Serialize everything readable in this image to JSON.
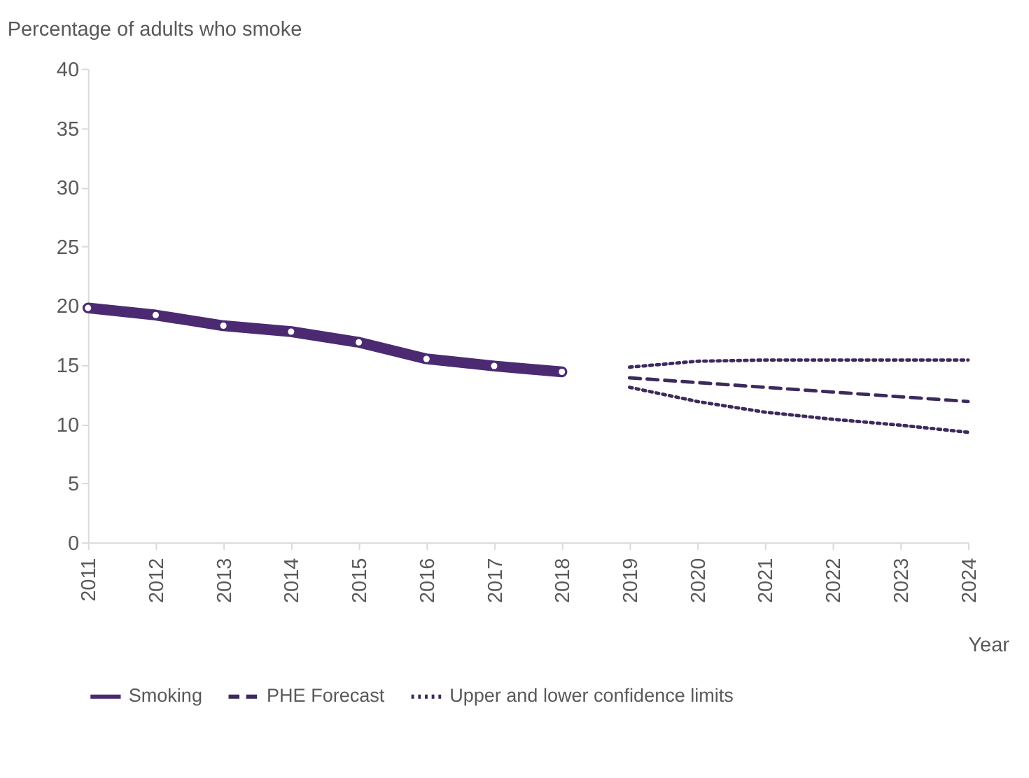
{
  "chart_data": {
    "type": "line",
    "ylabel": "Percentage of adults who smoke",
    "xlabel": "Year",
    "xlim": [
      2011,
      2024
    ],
    "xticks": [
      2011,
      2012,
      2013,
      2014,
      2015,
      2016,
      2017,
      2018,
      2019,
      2020,
      2021,
      2022,
      2023,
      2024
    ],
    "ylim": [
      0,
      40
    ],
    "yticks": [
      0,
      5,
      10,
      15,
      20,
      25,
      30,
      35,
      40
    ],
    "grid": false,
    "legend": "bottom",
    "series": [
      {
        "name": "Smoking",
        "color": "#4b2a72",
        "marker": "circle",
        "line_style": "solid",
        "x": [
          2011,
          2012,
          2013,
          2014,
          2015,
          2016,
          2017,
          2018
        ],
        "values": [
          19.8,
          19.2,
          18.3,
          17.8,
          16.9,
          15.5,
          14.9,
          14.4
        ]
      },
      {
        "name": "PHE Forecast",
        "color": "#3d2a5c",
        "marker": "none",
        "line_style": "dashed",
        "x": [
          2019,
          2020,
          2021,
          2022,
          2023,
          2024
        ],
        "values": [
          13.9,
          13.5,
          13.1,
          12.7,
          12.3,
          11.9
        ]
      },
      {
        "name": "Upper and lower confidence limits",
        "color": "#3d2a5c",
        "marker": "none",
        "line_style": "dotted",
        "x": [
          2019,
          2020,
          2021,
          2022,
          2023,
          2024
        ],
        "values": [
          14.8,
          15.3,
          15.4,
          15.4,
          15.4,
          15.4
        ]
      },
      {
        "color": "#3d2a5c",
        "marker": "none",
        "line_style": "dotted",
        "x": [
          2019,
          2020,
          2021,
          2022,
          2023,
          2024
        ],
        "values": [
          13.1,
          11.9,
          11.0,
          10.4,
          9.9,
          9.3
        ]
      }
    ]
  }
}
